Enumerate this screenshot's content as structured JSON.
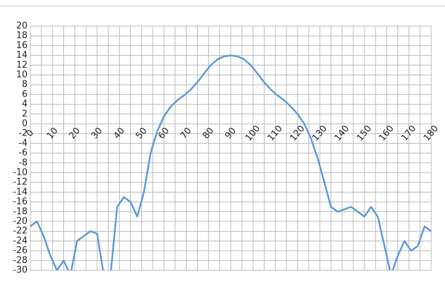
{
  "chart_data": {
    "type": "line",
    "x": [
      0,
      3,
      6,
      9,
      12,
      15,
      18,
      21,
      24,
      27,
      30,
      33,
      36,
      39,
      42,
      45,
      48,
      51,
      54,
      57,
      60,
      63,
      66,
      69,
      72,
      75,
      78,
      81,
      84,
      87,
      90,
      93,
      96,
      99,
      102,
      105,
      108,
      111,
      114,
      117,
      120,
      123,
      126,
      129,
      132,
      135,
      138,
      141,
      144,
      147,
      150,
      153,
      156,
      159,
      162,
      165,
      168,
      171,
      174,
      177,
      180
    ],
    "series": [
      {
        "name": null,
        "color": "#5b9bd5",
        "values": [
          -21,
          -20,
          -23,
          -27,
          -30,
          -28,
          -31,
          -24,
          -23,
          -22,
          -22.5,
          -31,
          -31,
          -17,
          -15,
          -16,
          -19,
          -14,
          -6,
          -1.5,
          1.5,
          3.5,
          4.8,
          5.8,
          7,
          8.5,
          10.3,
          12,
          13.2,
          13.8,
          14,
          13.8,
          13.2,
          12,
          10.3,
          8.5,
          7,
          5.8,
          4.8,
          3.5,
          2,
          0,
          -3,
          -7,
          -12,
          -17,
          -18,
          -17.5,
          -17,
          -18,
          -19,
          -17,
          -19,
          -25,
          -31,
          -27,
          -24,
          -26,
          -25,
          -21,
          -22
        ]
      }
    ],
    "xlim": [
      0,
      180
    ],
    "xticks": [
      0,
      10,
      20,
      30,
      40,
      50,
      60,
      70,
      80,
      90,
      100,
      110,
      120,
      130,
      140,
      150,
      160,
      170,
      180
    ],
    "ylim": [
      -30,
      20
    ],
    "yticks": [
      -30,
      -28,
      -26,
      -24,
      -22,
      -20,
      -18,
      -16,
      -14,
      -12,
      -10,
      -8,
      -6,
      -4,
      -2,
      0,
      2,
      4,
      6,
      8,
      10,
      12,
      14,
      16,
      18,
      20
    ],
    "grid": true,
    "minor_x_grid": true
  }
}
